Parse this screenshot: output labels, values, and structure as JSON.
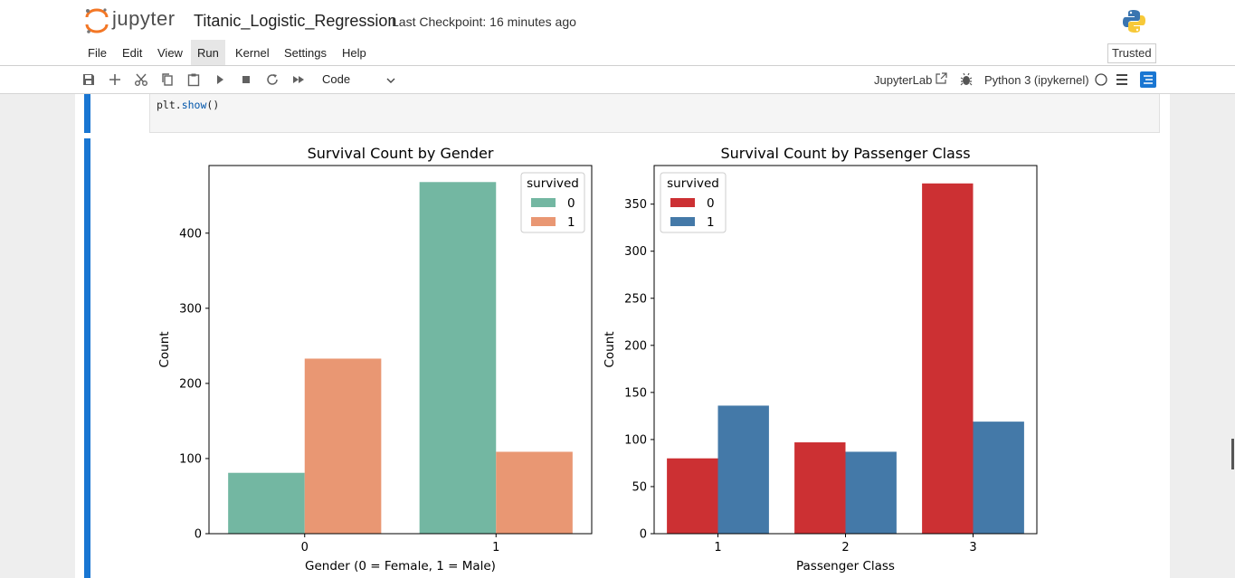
{
  "header": {
    "logo_text": "jupyter",
    "notebook_title": "Titanic_Logistic_Regression",
    "checkpoint": "Last Checkpoint: 16 minutes ago"
  },
  "menu": {
    "items": [
      "File",
      "Edit",
      "View",
      "Run",
      "Kernel",
      "Settings",
      "Help"
    ],
    "active": "Run",
    "trusted": "Trusted"
  },
  "toolbar": {
    "cell_type": "Code",
    "jupyterlab_link": "JupyterLab",
    "kernel_name": "Python 3 (ipykernel)",
    "icons": [
      "save-icon",
      "add-cell-icon",
      "cut-icon",
      "copy-icon",
      "paste-icon",
      "run-icon",
      "stop-icon",
      "restart-icon",
      "fast-forward-icon",
      "external-link-icon",
      "bug-icon",
      "kernel-idle-icon",
      "menu-lines-icon",
      "toc-icon"
    ]
  },
  "code_cell": {
    "call": "plt.",
    "fn": "show",
    "args": "()"
  },
  "chart_data": [
    {
      "type": "bar",
      "title": "Survival Count by Gender",
      "xlabel": "Gender (0 = Female, 1 = Male)",
      "ylabel": "Count",
      "categories": [
        "0",
        "1"
      ],
      "ylim": [
        0,
        490
      ],
      "yticks": [
        0,
        100,
        200,
        300,
        400
      ],
      "legend": {
        "title": "survived",
        "position": "top-right"
      },
      "series": [
        {
          "name": "0",
          "color": "#73b7a2",
          "values": [
            81,
            468
          ]
        },
        {
          "name": "1",
          "color": "#e99773",
          "values": [
            233,
            109
          ]
        }
      ]
    },
    {
      "type": "bar",
      "title": "Survival Count by Passenger Class",
      "xlabel": "Passenger Class",
      "ylabel": "Count",
      "categories": [
        "1",
        "2",
        "3"
      ],
      "ylim": [
        0,
        391
      ],
      "yticks": [
        0,
        50,
        100,
        150,
        200,
        250,
        300,
        350
      ],
      "legend": {
        "title": "survived",
        "position": "top-left"
      },
      "series": [
        {
          "name": "0",
          "color": "#cc3033",
          "values": [
            80,
            97,
            372
          ]
        },
        {
          "name": "1",
          "color": "#4479a8",
          "values": [
            136,
            87,
            119
          ]
        }
      ]
    }
  ]
}
